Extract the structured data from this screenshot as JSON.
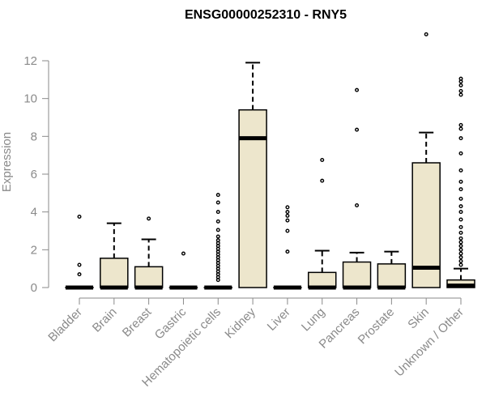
{
  "chart_data": {
    "type": "boxplot",
    "title": "ENSG00000252310 - RNY5",
    "xlabel": "",
    "ylabel": "Expression",
    "ylim": [
      0,
      13.5
    ],
    "yticks": [
      0,
      2,
      4,
      6,
      8,
      10,
      12
    ],
    "box_fill": "#ede6cc",
    "box_stroke": "#000000",
    "axis_color": "#8a8a8a",
    "categories": [
      "Bladder",
      "Brain",
      "Breast",
      "Gastric",
      "Hematopoietic cells",
      "Kidney",
      "Liver",
      "Lung",
      "Pancreas",
      "Prostate",
      "Skin",
      "Unknown / Other"
    ],
    "boxes": [
      {
        "category": "Bladder",
        "q1": 0,
        "median": 0,
        "q3": 0,
        "whisker_low": 0,
        "whisker_high": 0,
        "outliers": [
          0.7,
          1.2,
          3.75
        ]
      },
      {
        "category": "Brain",
        "q1": 0,
        "median": 0,
        "q3": 1.55,
        "whisker_low": 0,
        "whisker_high": 3.4,
        "outliers": []
      },
      {
        "category": "Breast",
        "q1": 0,
        "median": 0,
        "q3": 1.1,
        "whisker_low": 0,
        "whisker_high": 2.55,
        "outliers": [
          3.65
        ]
      },
      {
        "category": "Gastric",
        "q1": 0,
        "median": 0,
        "q3": 0,
        "whisker_low": 0,
        "whisker_high": 0,
        "outliers": [
          1.8
        ]
      },
      {
        "category": "Hematopoietic cells",
        "q1": 0,
        "median": 0,
        "q3": 0,
        "whisker_low": 0,
        "whisker_high": 0,
        "outliers": [
          0.4,
          0.55,
          0.7,
          0.85,
          1.0,
          1.15,
          1.3,
          1.45,
          1.6,
          1.75,
          1.9,
          2.05,
          2.2,
          2.35,
          2.5,
          2.7,
          3.05,
          3.5,
          4.0,
          4.5,
          4.9
        ]
      },
      {
        "category": "Kidney",
        "q1": 0,
        "median": 7.9,
        "q3": 9.4,
        "whisker_low": 0,
        "whisker_high": 11.9,
        "outliers": []
      },
      {
        "category": "Liver",
        "q1": 0,
        "median": 0,
        "q3": 0,
        "whisker_low": 0,
        "whisker_high": 0,
        "outliers": [
          1.9,
          3.0,
          3.55,
          3.8,
          4.0,
          4.25
        ]
      },
      {
        "category": "Lung",
        "q1": 0,
        "median": 0,
        "q3": 0.8,
        "whisker_low": 0,
        "whisker_high": 1.95,
        "outliers": [
          5.65,
          6.75
        ]
      },
      {
        "category": "Pancreas",
        "q1": 0,
        "median": 0,
        "q3": 1.35,
        "whisker_low": 0,
        "whisker_high": 1.85,
        "outliers": [
          4.35,
          8.35,
          10.45
        ]
      },
      {
        "category": "Prostate",
        "q1": 0,
        "median": 0,
        "q3": 1.25,
        "whisker_low": 0,
        "whisker_high": 1.9,
        "outliers": []
      },
      {
        "category": "Skin",
        "q1": 0,
        "median": 1.05,
        "q3": 6.6,
        "whisker_low": 0,
        "whisker_high": 8.2,
        "outliers": [
          13.4
        ]
      },
      {
        "category": "Unknown / Other",
        "q1": 0,
        "median": 0.1,
        "q3": 0.4,
        "whisker_low": 0,
        "whisker_high": 1.0,
        "outliers": [
          1.2,
          1.4,
          1.6,
          1.8,
          2.0,
          2.2,
          2.4,
          2.6,
          2.9,
          3.2,
          3.6,
          4.0,
          4.3,
          4.7,
          5.2,
          5.6,
          6.2,
          7.1,
          7.9,
          8.4,
          8.6,
          10.2,
          10.4,
          10.7,
          10.9,
          11.05
        ]
      }
    ]
  }
}
